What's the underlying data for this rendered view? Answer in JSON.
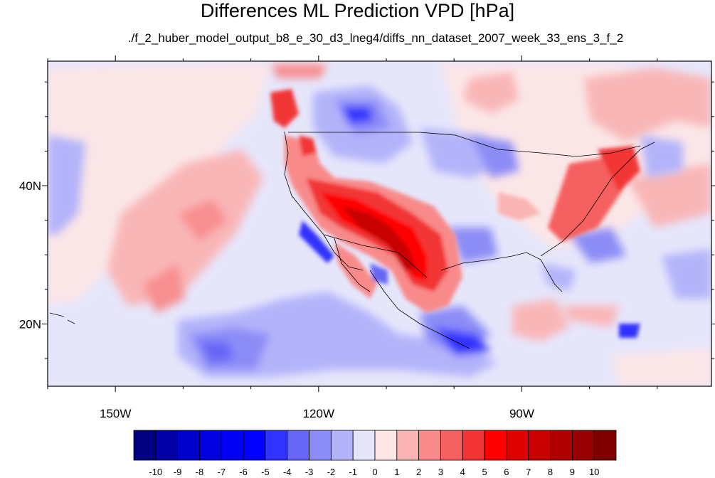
{
  "title": "Differences ML Prediction VPD [hPa]",
  "subtitle": "./f_2_huber_model_output_b8_e_30_d3_lneg4/diffs_nn_dataset_2007_week_33_ens_3_f_2",
  "map": {
    "lon_range": [
      -160,
      -62
    ],
    "lat_range": [
      11,
      58
    ],
    "lon_ticks": [
      {
        "lon": -150,
        "label": "150W"
      },
      {
        "lon": -120,
        "label": "120W"
      },
      {
        "lon": -90,
        "label": "90W"
      }
    ],
    "lat_ticks": [
      {
        "lat": 40,
        "label": "40N"
      },
      {
        "lat": 20,
        "label": "20N"
      }
    ]
  },
  "colorbar": {
    "labels": [
      "-10",
      "-9",
      "-8",
      "-7",
      "-6",
      "-5",
      "-4",
      "-3",
      "-2",
      "-1",
      "0",
      "1",
      "2",
      "3",
      "4",
      "5",
      "6",
      "7",
      "8",
      "9",
      "10"
    ],
    "colors": [
      "#000080",
      "#0000a6",
      "#0000cc",
      "#0000e0",
      "#0000f5",
      "#0000ff",
      "#3333ff",
      "#6666f5",
      "#8c8cf7",
      "#b3b3fa",
      "#e6e6fb",
      "#fde6e6",
      "#fbb4b4",
      "#f88a8a",
      "#f56060",
      "#f23434",
      "#ff0000",
      "#e00000",
      "#c80000",
      "#b00000",
      "#980000",
      "#800000"
    ]
  }
}
